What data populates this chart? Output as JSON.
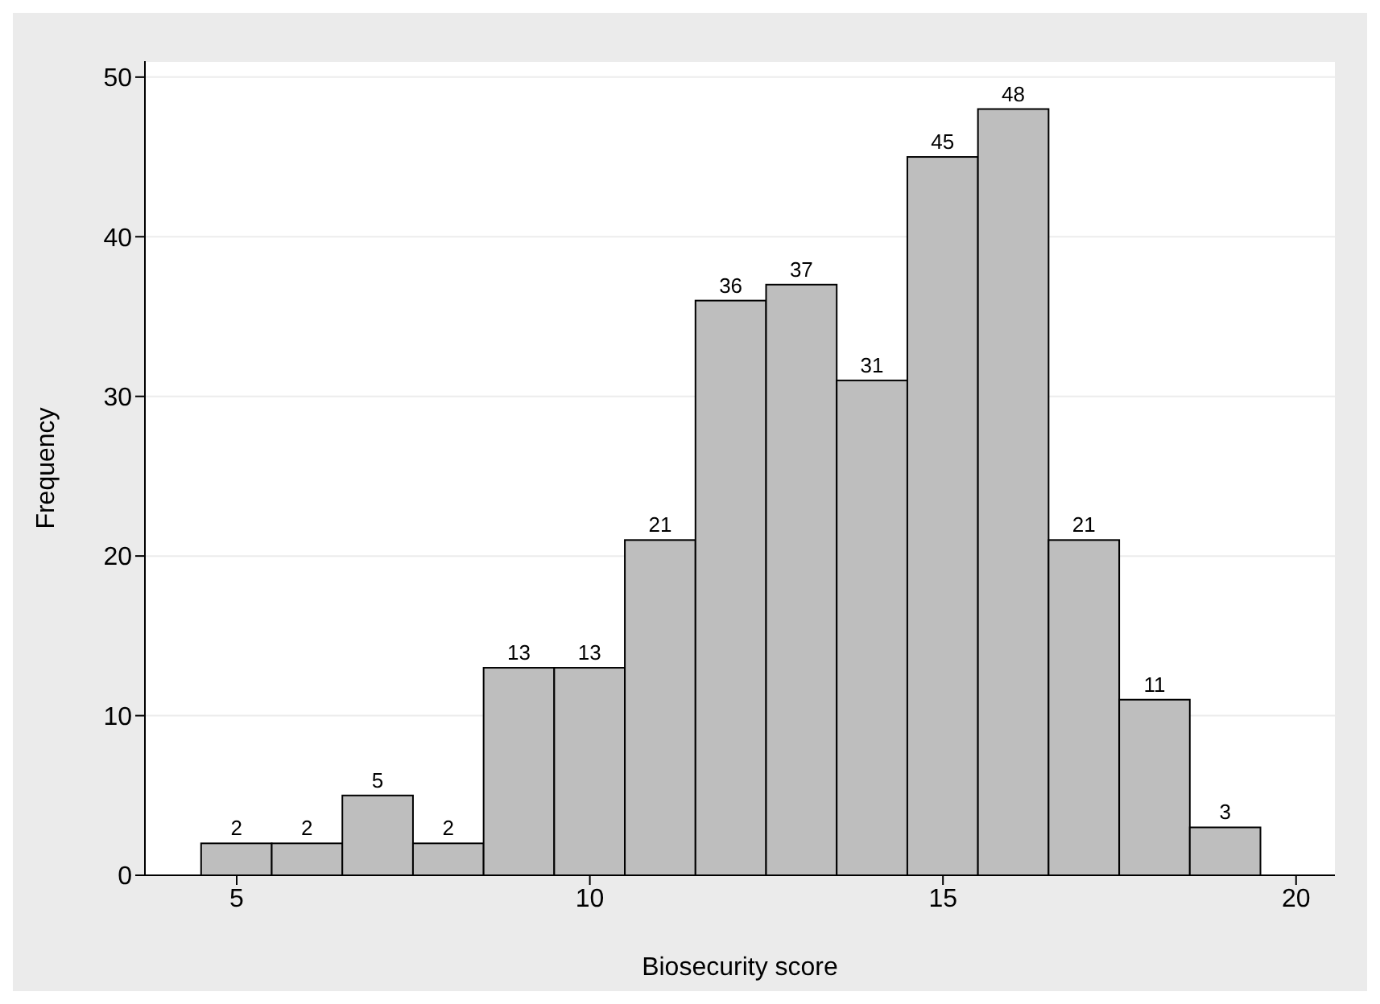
{
  "chart_data": {
    "type": "histogram",
    "xlabel": "Biosecurity score",
    "ylabel": "Frequency",
    "bins": [
      4.5,
      5.5,
      6.5,
      7.5,
      8.5,
      9.5,
      10.5,
      11.5,
      12.5,
      13.5,
      14.5,
      15.5,
      16.5,
      17.5,
      18.5,
      19.5
    ],
    "values": [
      2,
      2,
      5,
      2,
      13,
      13,
      21,
      36,
      37,
      31,
      45,
      48,
      21,
      11,
      3
    ],
    "color": "#bebebe",
    "xlim": [
      3.7,
      20.55
    ],
    "xticks": [
      5,
      10,
      15,
      20
    ],
    "ylim": [
      0,
      51
    ],
    "yticks": [
      0,
      10,
      20,
      30,
      40,
      50
    ],
    "grid": "y",
    "data_labels": true
  }
}
